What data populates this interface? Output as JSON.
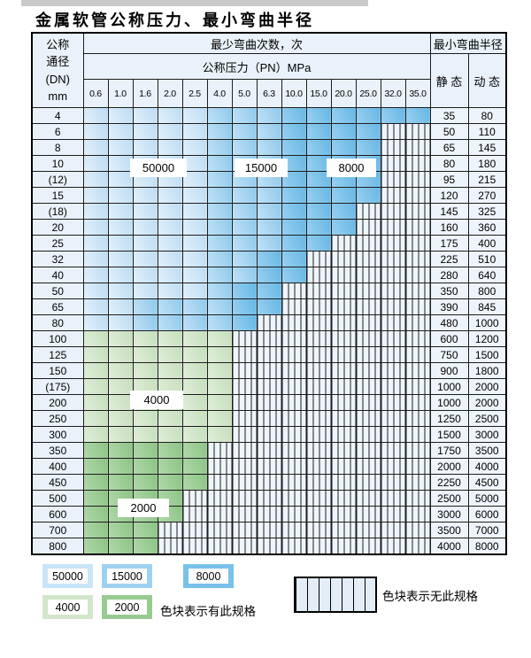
{
  "page": {
    "title": "金属软管公称压力、最小弯曲半径"
  },
  "table": {
    "corner_lines": [
      "公称",
      "通径",
      "(DN)",
      "mm"
    ],
    "headers": {
      "bend_cycles": "最少弯曲次数，次",
      "pressure": "公称压力（PN）MPa",
      "min_bend_radius": "最小弯曲半径",
      "static": "静 态",
      "dynamic": "动 态"
    },
    "pressure_columns": [
      "0.6",
      "1.0",
      "1.6",
      "2.0",
      "2.5",
      "4.0",
      "5.0",
      "6.3",
      "10.0",
      "15.0",
      "20.0",
      "25.0",
      "32.0",
      "35.0"
    ],
    "cell_code_key": {
      "L": "50000 bend cycles (light blue)",
      "M": "15000 bend cycles (medium blue)",
      "D": "8000 bend cycles (dark blue)",
      "G": "4000 bend cycles (light green)",
      "g": "2000 bend cycles (medium green)",
      "X": "no specification (hatched)"
    },
    "rows": [
      {
        "dn": "4",
        "cells": "LLLLLMMMDDDDDD",
        "static": "35",
        "dynamic": "80"
      },
      {
        "dn": "6",
        "cells": "LLLLLMMMDDDDXX",
        "static": "50",
        "dynamic": "110"
      },
      {
        "dn": "8",
        "cells": "LLLLLMMMDDDDXX",
        "static": "65",
        "dynamic": "145"
      },
      {
        "dn": "10",
        "cells": "LLLLLMMMDDDDXX",
        "static": "80",
        "dynamic": "180"
      },
      {
        "dn": "(12)",
        "cells": "LLLLLMMMDDDDXX",
        "static": "95",
        "dynamic": "215"
      },
      {
        "dn": "15",
        "cells": "LLLLLMMMDDDDXX",
        "static": "120",
        "dynamic": "270"
      },
      {
        "dn": "(18)",
        "cells": "LLLLLMMMDDDXXX",
        "static": "145",
        "dynamic": "325"
      },
      {
        "dn": "20",
        "cells": "LLLLLMMMDDDXXX",
        "static": "160",
        "dynamic": "360"
      },
      {
        "dn": "25",
        "cells": "LLLLLMMMDDXXXX",
        "static": "175",
        "dynamic": "400"
      },
      {
        "dn": "32",
        "cells": "LLLLLMMDDXXXXX",
        "static": "225",
        "dynamic": "510"
      },
      {
        "dn": "40",
        "cells": "LLLLLMMDDXXXXX",
        "static": "280",
        "dynamic": "640"
      },
      {
        "dn": "50",
        "cells": "LLLLLMDDXXXXXX",
        "static": "350",
        "dynamic": "800"
      },
      {
        "dn": "65",
        "cells": "LLMMMMDDXXXXXX",
        "static": "390",
        "dynamic": "845"
      },
      {
        "dn": "80",
        "cells": "LLMMMMDXXXXXXX",
        "static": "480",
        "dynamic": "1000"
      },
      {
        "dn": "100",
        "cells": "GGGGGGXXXXXXXX",
        "static": "600",
        "dynamic": "1200"
      },
      {
        "dn": "125",
        "cells": "GGGGGGXXXXXXXX",
        "static": "750",
        "dynamic": "1500"
      },
      {
        "dn": "150",
        "cells": "GGGGGGXXXXXXXX",
        "static": "900",
        "dynamic": "1800"
      },
      {
        "dn": "(175)",
        "cells": "GGGGGGXXXXXXXX",
        "static": "1000",
        "dynamic": "2000"
      },
      {
        "dn": "200",
        "cells": "GGGGGGXXXXXXXX",
        "static": "1000",
        "dynamic": "2000"
      },
      {
        "dn": "250",
        "cells": "GGGGGGXXXXXXXX",
        "static": "1250",
        "dynamic": "2500"
      },
      {
        "dn": "300",
        "cells": "GGGGGGXXXXXXXX",
        "static": "1500",
        "dynamic": "3000"
      },
      {
        "dn": "350",
        "cells": "gggggXXXXXXXXX",
        "static": "1750",
        "dynamic": "3500"
      },
      {
        "dn": "400",
        "cells": "gggggXXXXXXXXX",
        "static": "2000",
        "dynamic": "4000"
      },
      {
        "dn": "450",
        "cells": "gggggXXXXXXXXX",
        "static": "2250",
        "dynamic": "4500"
      },
      {
        "dn": "500",
        "cells": "ggggXXXXXXXXXX",
        "static": "2500",
        "dynamic": "5000"
      },
      {
        "dn": "600",
        "cells": "ggggXXXXXXXXXX",
        "static": "3000",
        "dynamic": "6000"
      },
      {
        "dn": "700",
        "cells": "gggXXXXXXXXXXX",
        "static": "3500",
        "dynamic": "7000"
      },
      {
        "dn": "800",
        "cells": "gggXXXXXXXXXXX",
        "static": "4000",
        "dynamic": "8000"
      }
    ]
  },
  "overlay_labels": {
    "b50000": "50000",
    "b15000": "15000",
    "b8000": "8000",
    "g4000": "4000",
    "g2000": "2000"
  },
  "legend": {
    "items": [
      {
        "label": "50000",
        "color": "#c9e5f8"
      },
      {
        "label": "15000",
        "color": "#9fd2f0"
      },
      {
        "label": "8000",
        "color": "#79c1ea"
      },
      {
        "label": "4000",
        "color": "#d2e7ca"
      },
      {
        "label": "2000",
        "color": "#97cb90"
      }
    ],
    "available_note": "色块表示有此规格",
    "no_spec_note": "色块表示无此规格"
  },
  "colors": {
    "cycles_50000": "#c9e5f8",
    "cycles_15000": "#9fd2f0",
    "cycles_8000": "#79c1ea",
    "cycles_4000": "#d2e7ca",
    "cycles_2000": "#97cb90",
    "hatch_bg": "#eef5fc",
    "header_bg": "#e9f2fb",
    "border": "#1d1d1d",
    "top_strip": "#c9c9c9"
  }
}
